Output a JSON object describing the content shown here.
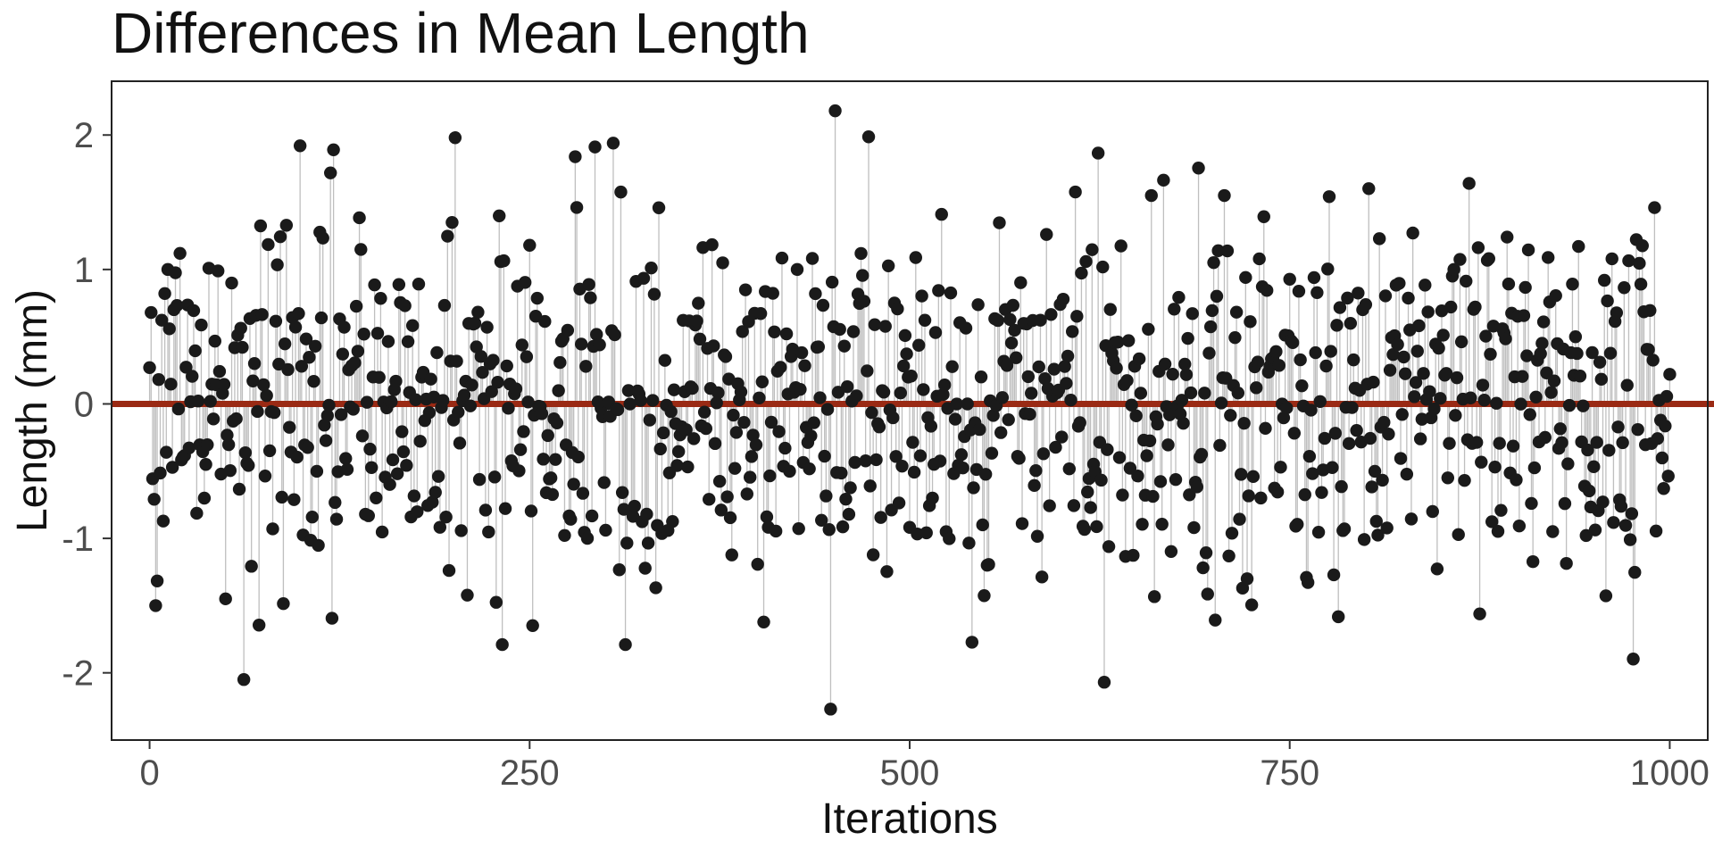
{
  "chart_data": {
    "type": "scatter",
    "title": "Differences in Mean Length",
    "xlabel": "Iterations",
    "ylabel": "Length (mm)",
    "xlim": [
      -25,
      1025
    ],
    "ylim": [
      -2.5,
      2.4
    ],
    "xticks": [
      0,
      250,
      500,
      750,
      1000
    ],
    "xtick_labels": [
      "0",
      "250",
      "500",
      "750",
      "1000"
    ],
    "yticks": [
      -2,
      -1,
      0,
      1,
      2
    ],
    "ytick_labels": [
      "-2",
      "-1",
      "0",
      "1",
      "2"
    ],
    "reference_line": {
      "y": 0,
      "color": "#9a2a14"
    },
    "stems": true,
    "grid": false,
    "point_color": "#1a1a1a",
    "stem_color": "#bfbfbf",
    "highlight_points": [
      {
        "x": 0,
        "y": 0.27
      },
      {
        "x": 1,
        "y": 0.68
      },
      {
        "x": 4,
        "y": -1.5
      },
      {
        "x": 12,
        "y": 1.0
      },
      {
        "x": 20,
        "y": 1.12
      },
      {
        "x": 62,
        "y": -2.05
      },
      {
        "x": 99,
        "y": 1.92
      },
      {
        "x": 121,
        "y": 1.89
      },
      {
        "x": 201,
        "y": 1.98
      },
      {
        "x": 232,
        "y": -1.79
      },
      {
        "x": 305,
        "y": 1.94
      },
      {
        "x": 313,
        "y": -1.79
      },
      {
        "x": 448,
        "y": -2.27
      },
      {
        "x": 451,
        "y": 2.18
      },
      {
        "x": 628,
        "y": -2.07
      },
      {
        "x": 659,
        "y": 1.55
      },
      {
        "x": 707,
        "y": 1.55
      },
      {
        "x": 868,
        "y": 1.64
      },
      {
        "x": 990,
        "y": 1.46
      },
      {
        "x": 1000,
        "y": 0.22
      }
    ],
    "n_points": 1000,
    "y_range_observed": [
      -2.27,
      2.18
    ]
  }
}
